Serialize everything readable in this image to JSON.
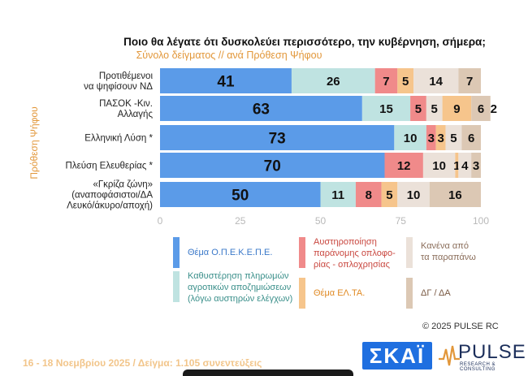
{
  "title": "Ποιο θα λέγατε ότι δυσκολεύει περισσότερο, την κυβέρνηση, σήμερα;",
  "subtitle": "Σύνολο δείγματος // ανά Πρόθεση Ψήφου",
  "watermark": "PULSE",
  "colors": {
    "blue": "#5b9be8",
    "teal": "#bfe3e1",
    "red": "#f08a8a",
    "orange": "#f6c58c",
    "light_beige": "#ebe1d9",
    "brown": "#dcc8b4"
  },
  "chart_data": {
    "type": "bar",
    "orientation": "horizontal",
    "stacked": true,
    "y_axis_title": "Πρόθεση Ψήφου",
    "xlim": [
      0,
      100
    ],
    "x_ticks": [
      "0",
      "25",
      "50",
      "75",
      "100"
    ],
    "categories": [
      [
        "Προτιθέμενοι",
        "να ψηφίσουν ΝΔ"
      ],
      [
        "ΠΑΣΟΚ -Κιν.",
        "Αλλαγής"
      ],
      [
        "Ελληνική Λύση *"
      ],
      [
        "Πλεύση Ελευθερίας *"
      ],
      [
        "«Γκρίζα ζώνη»",
        "(αναποφάσιστοι/ΔΑ",
        "Λευκό/άκυρο/αποχή)"
      ]
    ],
    "series": [
      {
        "name": "Θέμα Ο.Π.Ε.Κ.Ε.Π.Ε.",
        "color": "#5b9be8",
        "values": [
          41,
          63,
          73,
          70,
          50
        ]
      },
      {
        "name": "Καθυστέρηση πληρωμών αγροτικών αποζημιώσεων (λόγω αυστηρών ελέγχων)",
        "color": "#bfe3e1",
        "values": [
          26,
          15,
          10,
          0,
          11
        ]
      },
      {
        "name": "Αυστηροποίηση παράνομης οπλοφορίας - οπλοχρησίας",
        "color": "#f08a8a",
        "values": [
          7,
          5,
          3,
          12,
          8
        ]
      },
      {
        "name": "Θέμα ΕΛ.ΤΑ.",
        "color": "#f6c58c",
        "values": [
          5,
          9,
          3,
          0,
          5
        ]
      },
      {
        "name": "Κανένα από τα παραπάνω",
        "color": "#ebe1d9",
        "values": [
          14,
          0,
          5,
          10,
          10
        ]
      },
      {
        "name": "ΔΓ / ΔΑ",
        "color": "#dcc8b4",
        "values": [
          7,
          6,
          6,
          3,
          16
        ]
      }
    ],
    "extra_segments": [
      {
        "row": 1,
        "after_series": 2,
        "value": 5,
        "color": "#ebe1d9",
        "label": "5"
      },
      {
        "row": 1,
        "after_series": 5,
        "value": 2,
        "color": "#ffffff",
        "label": "2"
      },
      {
        "row": 3,
        "after_series": 4,
        "value": 1,
        "color": "#f6c58c",
        "label": "1"
      },
      {
        "row": 3,
        "after_series": 4,
        "value": 4,
        "color": "#ebe1d9",
        "label": "4"
      }
    ]
  },
  "legend": [
    {
      "label": [
        "Θέμα Ο.Π.Ε.Κ.Ε.Π.Ε."
      ],
      "color": "#5b9be8",
      "text_color": "#3a78c9"
    },
    {
      "label": [
        "Αυστηροποίηση",
        "παράνομης οπλοφο-",
        "ρίας - οπλοχρησίας"
      ],
      "color": "#f08a8a",
      "text_color": "#c9473f"
    },
    {
      "label": [
        "Κανένα από",
        "τα παραπάνω"
      ],
      "color": "#ebe1d9",
      "text_color": "#8a6d5a"
    },
    {
      "label": [
        "Καθυστέρηση πληρωμών",
        "αγροτικών αποζημιώσεων",
        "(λόγω αυστηρών ελέγχων)"
      ],
      "color": "#bfe3e1",
      "text_color": "#3a8f8a"
    },
    {
      "label": [
        "Θέμα ΕΛ.ΤΑ."
      ],
      "color": "#f6c58c",
      "text_color": "#e08a24"
    },
    {
      "label": [
        "ΔΓ / ΔΑ"
      ],
      "color": "#dcc8b4",
      "text_color": "#7a5a44"
    }
  ],
  "copyright": "© 2025 PULSE RC",
  "footer": "16 - 18 Νοεμβρίου 2025  /  Δείγμα:  1.105 συνεντεύξεις",
  "logos": {
    "skai": "ΣΚΑΪ",
    "pulse": "PULSE",
    "pulse_sub": "RESEARCH & CONSULTING"
  }
}
